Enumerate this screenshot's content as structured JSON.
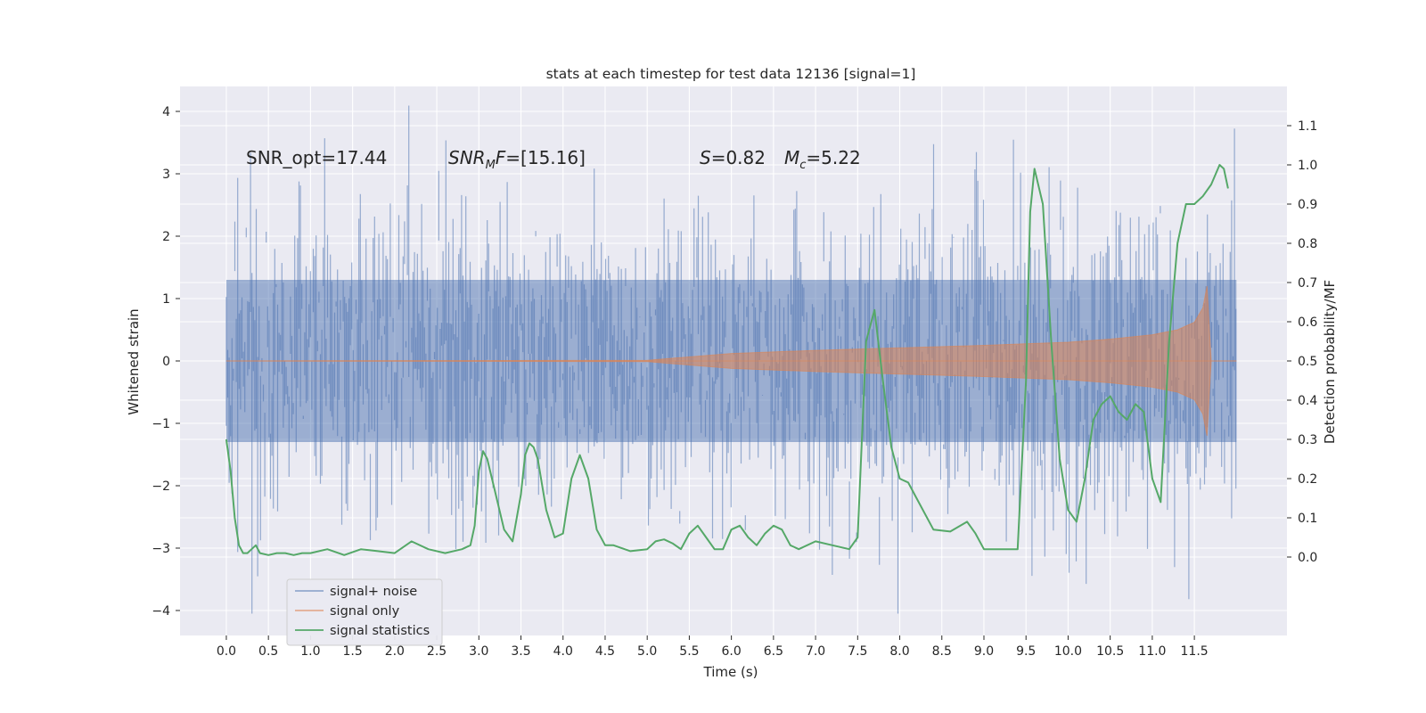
{
  "chart_data": {
    "type": "line",
    "title": "stats at each timestep for test data 12136 [signal=1]",
    "xlabel": "Time (s)",
    "ylabel": "Whitened strain",
    "y2label": "Detection probability/MF",
    "xlim": [
      -0.55,
      12.6
    ],
    "ylim": [
      -4.4,
      4.4
    ],
    "y2lim": [
      -0.2,
      1.2
    ],
    "x_ticks": [
      0.0,
      0.5,
      1.0,
      1.5,
      2.0,
      2.5,
      3.0,
      3.5,
      4.0,
      4.5,
      5.0,
      5.5,
      6.0,
      6.5,
      7.0,
      7.5,
      8.0,
      8.5,
      9.0,
      9.5,
      10.0,
      10.5,
      11.0,
      11.5
    ],
    "x_tick_labels": [
      "0.0",
      "0.5",
      "1.0",
      "1.5",
      "2.0",
      "2.5",
      "3.0",
      "3.5",
      "4.0",
      "4.5",
      "5.0",
      "5.5",
      "6.0",
      "6.5",
      "7.0",
      "7.5",
      "8.0",
      "8.5",
      "9.0",
      "9.5",
      "10.0",
      "10.5",
      "11.0",
      "11.5"
    ],
    "y_ticks": [
      4,
      3,
      2,
      1,
      0,
      -1,
      -2,
      -3,
      -4
    ],
    "y_tick_labels": [
      "4",
      "3",
      "2",
      "1",
      "0",
      "−1",
      "−2",
      "−3",
      "−4"
    ],
    "y2_ticks": [
      1.1,
      1.0,
      0.9,
      0.8,
      0.7,
      0.6,
      0.5,
      0.4,
      0.3,
      0.2,
      0.1,
      0.0
    ],
    "y2_tick_labels": [
      "1.1",
      "1.0",
      "0.9",
      "0.8",
      "0.7",
      "0.6",
      "0.5",
      "0.4",
      "0.3",
      "0.2",
      "0.1",
      "0.0"
    ],
    "grid": true,
    "legend_position": "lower-left",
    "annotations": {
      "snr_opt": "SNR_opt=17.44",
      "snr_mf_italic": "SNR",
      "snr_mf_sub": "M",
      "snr_mf_italic2": "F",
      "snr_mf_value": "=[15.16]",
      "s_italic": "S",
      "s_value": "=0.82",
      "mc_italic": "M",
      "mc_sub": "c",
      "mc_value": "=5.22"
    },
    "series": [
      {
        "name": "signal+ noise",
        "color": "#4c72b0",
        "axis": "left",
        "kind": "noise",
        "x_range": [
          0.0,
          12.0
        ],
        "typical_amplitude": 1.3,
        "max_value": 4.1,
        "min_value": -4.05
      },
      {
        "name": "signal only",
        "color": "#dd8452",
        "axis": "left",
        "kind": "chirp-envelope",
        "x": [
          0.0,
          5.0,
          6.0,
          7.0,
          8.0,
          9.0,
          10.0,
          10.5,
          11.0,
          11.3,
          11.5,
          11.6,
          11.65,
          11.7,
          12.0
        ],
        "envelope": [
          0.0,
          0.01,
          0.12,
          0.17,
          0.21,
          0.25,
          0.3,
          0.35,
          0.42,
          0.5,
          0.62,
          0.85,
          1.2,
          0.0,
          0.0
        ]
      },
      {
        "name": "signal statistics",
        "color": "#55a868",
        "axis": "right",
        "x": [
          0.0,
          0.05,
          0.1,
          0.15,
          0.2,
          0.25,
          0.3,
          0.35,
          0.4,
          0.5,
          0.6,
          0.7,
          0.8,
          0.9,
          1.0,
          1.2,
          1.4,
          1.6,
          1.8,
          2.0,
          2.2,
          2.4,
          2.6,
          2.8,
          2.9,
          2.95,
          3.0,
          3.05,
          3.1,
          3.2,
          3.3,
          3.4,
          3.5,
          3.55,
          3.6,
          3.65,
          3.7,
          3.8,
          3.9,
          4.0,
          4.1,
          4.2,
          4.3,
          4.4,
          4.5,
          4.6,
          4.8,
          5.0,
          5.1,
          5.2,
          5.3,
          5.4,
          5.5,
          5.6,
          5.7,
          5.8,
          5.9,
          6.0,
          6.1,
          6.2,
          6.3,
          6.4,
          6.5,
          6.6,
          6.7,
          6.8,
          7.0,
          7.2,
          7.4,
          7.5,
          7.6,
          7.7,
          7.8,
          7.9,
          8.0,
          8.1,
          8.2,
          8.4,
          8.6,
          8.8,
          8.9,
          9.0,
          9.2,
          9.4,
          9.5,
          9.55,
          9.6,
          9.7,
          9.8,
          9.9,
          10.0,
          10.1,
          10.2,
          10.3,
          10.4,
          10.5,
          10.6,
          10.7,
          10.8,
          10.9,
          11.0,
          11.1,
          11.2,
          11.3,
          11.4,
          11.5,
          11.6,
          11.7,
          11.8,
          11.85,
          11.9
        ],
        "values": [
          0.3,
          0.22,
          0.1,
          0.03,
          0.01,
          0.01,
          0.02,
          0.03,
          0.01,
          0.005,
          0.01,
          0.01,
          0.005,
          0.01,
          0.01,
          0.02,
          0.005,
          0.02,
          0.015,
          0.01,
          0.04,
          0.02,
          0.01,
          0.02,
          0.03,
          0.08,
          0.22,
          0.27,
          0.25,
          0.16,
          0.07,
          0.04,
          0.16,
          0.26,
          0.29,
          0.28,
          0.25,
          0.12,
          0.05,
          0.06,
          0.2,
          0.26,
          0.2,
          0.07,
          0.03,
          0.03,
          0.015,
          0.02,
          0.04,
          0.045,
          0.035,
          0.02,
          0.06,
          0.08,
          0.05,
          0.02,
          0.02,
          0.07,
          0.08,
          0.05,
          0.03,
          0.06,
          0.08,
          0.07,
          0.03,
          0.02,
          0.04,
          0.03,
          0.02,
          0.05,
          0.55,
          0.63,
          0.45,
          0.28,
          0.2,
          0.19,
          0.15,
          0.07,
          0.065,
          0.09,
          0.06,
          0.02,
          0.02,
          0.02,
          0.45,
          0.88,
          0.99,
          0.9,
          0.55,
          0.25,
          0.12,
          0.09,
          0.2,
          0.35,
          0.39,
          0.41,
          0.37,
          0.35,
          0.39,
          0.37,
          0.2,
          0.14,
          0.55,
          0.8,
          0.9,
          0.9,
          0.92,
          0.95,
          1.0,
          0.99,
          0.94
        ]
      }
    ]
  }
}
